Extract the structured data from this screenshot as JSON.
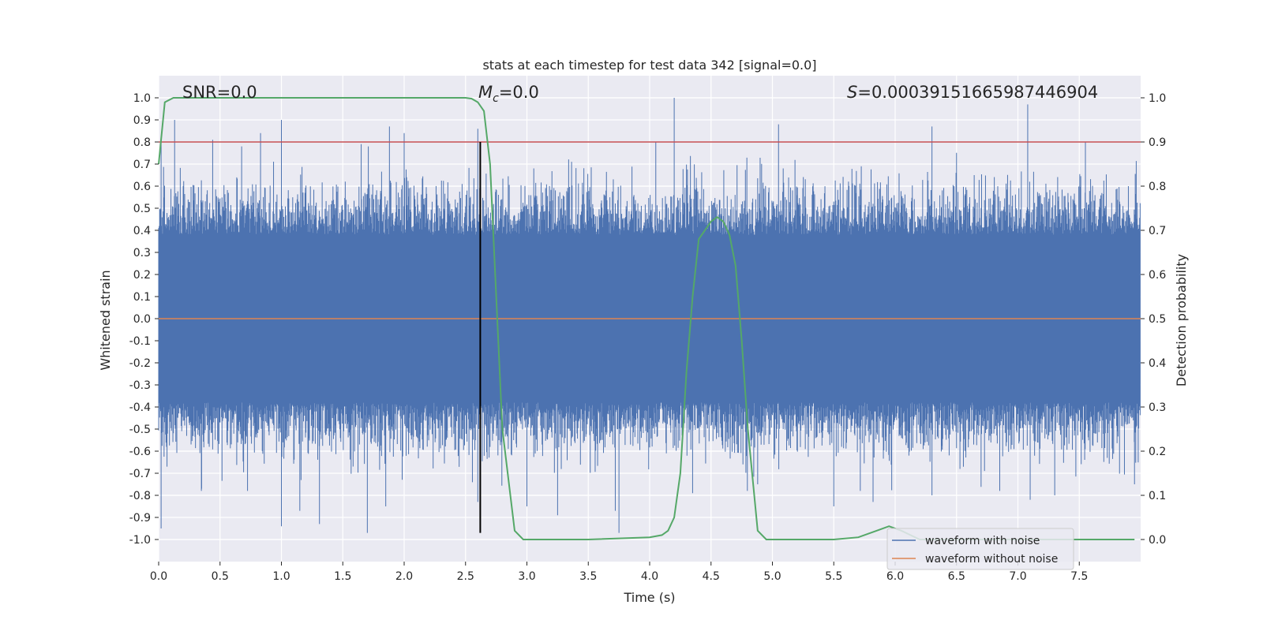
{
  "chart_data": {
    "type": "line",
    "title": "stats at each timestep for test data 342 [signal=0.0]",
    "xlabel": "Time (s)",
    "ylabel": "Whitened strain",
    "y2label": "Detection probability",
    "xlim": [
      0.0,
      8.0
    ],
    "ylim": [
      -1.1,
      1.1
    ],
    "y2lim": [
      -0.05,
      1.05
    ],
    "xticks": [
      "0.0",
      "0.5",
      "1.0",
      "1.5",
      "2.0",
      "2.5",
      "3.0",
      "3.5",
      "4.0",
      "4.5",
      "5.0",
      "5.5",
      "6.0",
      "6.5",
      "7.0",
      "7.5"
    ],
    "yticks": [
      "1.0",
      "0.9",
      "0.8",
      "0.7",
      "0.6",
      "0.5",
      "0.4",
      "0.3",
      "0.2",
      "0.1",
      "0.0",
      "-0.1",
      "-0.2",
      "-0.3",
      "-0.4",
      "-0.5",
      "-0.6",
      "-0.7",
      "-0.8",
      "-0.9",
      "-1.0"
    ],
    "y2ticks": [
      "1.0",
      "0.9",
      "0.8",
      "0.7",
      "0.6",
      "0.5",
      "0.4",
      "0.3",
      "0.2",
      "0.1",
      "0.0"
    ],
    "grid": true,
    "legend_position": "lower-right",
    "annotations": {
      "snr": "SNR=0.0",
      "mc_symbol": "M",
      "mc_sub": "c",
      "mc_value": "=0.0",
      "s_symbol": "S",
      "s_value": "=0.0003915166598744690 4"
    },
    "series": [
      {
        "name": "waveform with noise",
        "color": "#4c72b0",
        "style": "dense noisy trace",
        "extrema": {
          "max": [
            [
              0.02,
              0.82
            ],
            [
              0.13,
              0.9
            ],
            [
              0.44,
              0.81
            ],
            [
              0.83,
              0.84
            ],
            [
              1.0,
              0.9
            ],
            [
              1.65,
              0.79
            ],
            [
              1.88,
              0.87
            ],
            [
              2.0,
              0.84
            ],
            [
              2.6,
              0.86
            ],
            [
              4.05,
              0.8
            ],
            [
              4.2,
              1.0
            ],
            [
              5.05,
              0.88
            ],
            [
              6.3,
              0.87
            ],
            [
              7.08,
              0.97
            ],
            [
              7.55,
              0.8
            ]
          ],
          "min": [
            [
              0.02,
              -0.95
            ],
            [
              0.35,
              -0.77
            ],
            [
              1.0,
              -0.94
            ],
            [
              1.15,
              -0.87
            ],
            [
              1.31,
              -0.93
            ],
            [
              1.7,
              -0.97
            ],
            [
              1.85,
              -0.85
            ],
            [
              2.6,
              -0.83
            ],
            [
              3.0,
              -0.85
            ],
            [
              3.25,
              -0.89
            ],
            [
              3.72,
              -0.87
            ],
            [
              3.75,
              -0.97
            ],
            [
              4.35,
              -0.79
            ],
            [
              4.88,
              -0.75
            ],
            [
              5.5,
              -0.85
            ],
            [
              5.82,
              -0.83
            ],
            [
              6.3,
              -0.8
            ],
            [
              7.1,
              -0.82
            ],
            [
              7.3,
              -0.8
            ],
            [
              7.95,
              -0.75
            ]
          ]
        }
      },
      {
        "name": "waveform without noise",
        "color": "#dd8452",
        "x": [
          0.0,
          8.0
        ],
        "y": [
          0.0,
          0.0
        ]
      },
      {
        "name": "",
        "axis": "right",
        "color": "#55a868",
        "x": [
          0.0,
          0.05,
          0.12,
          0.3,
          1.0,
          2.0,
          2.4,
          2.5,
          2.55,
          2.6,
          2.65,
          2.7,
          2.75,
          2.8,
          2.9,
          2.97,
          3.1,
          3.5,
          4.0,
          4.1,
          4.15,
          4.2,
          4.25,
          4.3,
          4.35,
          4.4,
          4.5,
          4.55,
          4.6,
          4.65,
          4.7,
          4.75,
          4.8,
          4.88,
          4.95,
          5.05,
          5.5,
          5.7,
          5.85,
          5.95,
          6.05,
          6.2,
          7.0,
          7.95
        ],
        "y": [
          0.85,
          0.99,
          1.0,
          1.0,
          1.0,
          1.0,
          1.0,
          1.0,
          0.998,
          0.99,
          0.97,
          0.85,
          0.55,
          0.25,
          0.02,
          0.0,
          0.0,
          0.0,
          0.005,
          0.01,
          0.02,
          0.05,
          0.15,
          0.38,
          0.55,
          0.68,
          0.72,
          0.73,
          0.72,
          0.69,
          0.62,
          0.45,
          0.25,
          0.02,
          0.0,
          0.0,
          0.0,
          0.005,
          0.02,
          0.03,
          0.02,
          0.0,
          0.0,
          0.0
        ]
      }
    ],
    "reference_lines": {
      "threshold_strain": 0.8,
      "threshold_color": "#c44e52",
      "marker_time": 2.62,
      "marker_color": "#000000"
    }
  }
}
